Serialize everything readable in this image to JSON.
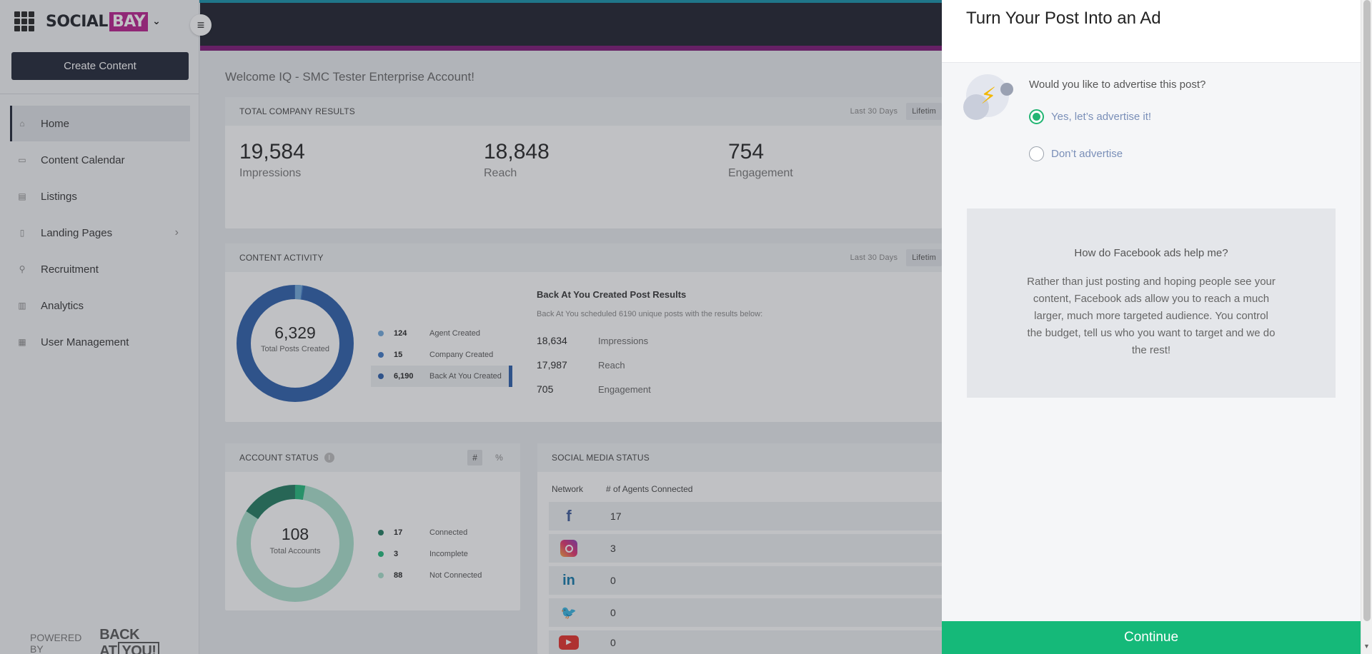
{
  "brand": {
    "name_a": "SOCIAL",
    "name_b": "BAY"
  },
  "sidebar": {
    "create_label": "Create Content",
    "items": [
      {
        "label": "Home",
        "icon": "home-icon"
      },
      {
        "label": "Content Calendar",
        "icon": "calendar-icon"
      },
      {
        "label": "Listings",
        "icon": "listings-icon"
      },
      {
        "label": "Landing Pages",
        "icon": "page-icon"
      },
      {
        "label": "Recruitment",
        "icon": "add-user-icon"
      },
      {
        "label": "Analytics",
        "icon": "bar-chart-icon"
      },
      {
        "label": "User Management",
        "icon": "users-icon"
      }
    ],
    "powered_by": "POWERED BY",
    "powered_logo_a": "BACK AT",
    "powered_logo_b": "YOU!"
  },
  "main": {
    "welcome": "Welcome IQ - SMC Tester Enterprise Account!",
    "company": {
      "title": "TOTAL COMPANY RESULTS",
      "range": "Last 30 Days",
      "range_btn": "Lifetim",
      "stats": [
        {
          "value": "19,584",
          "label": "Impressions"
        },
        {
          "value": "18,848",
          "label": "Reach"
        },
        {
          "value": "754",
          "label": "Engagement"
        }
      ]
    },
    "activity": {
      "title": "CONTENT ACTIVITY",
      "range": "Last 30 Days",
      "range_btn": "Lifetim",
      "total": "6,329",
      "total_label": "Total Posts Created",
      "legend": [
        {
          "value": "124",
          "label": "Agent Created",
          "color": "#6fa8dc"
        },
        {
          "value": "15",
          "label": "Company Created",
          "color": "#3d78c4"
        },
        {
          "value": "6,190",
          "label": "Back At You Created",
          "color": "#2a5daa"
        }
      ],
      "results_title": "Back At You Created Post Results",
      "results_sub": "Back At You scheduled 6190 unique posts with the results below:",
      "results": [
        {
          "value": "18,634",
          "label": "Impressions"
        },
        {
          "value": "17,987",
          "label": "Reach"
        },
        {
          "value": "705",
          "label": "Engagement"
        }
      ]
    },
    "account": {
      "title": "ACCOUNT STATUS",
      "toggle_hash": "#",
      "toggle_pct": "%",
      "total": "108",
      "total_label": "Total Accounts",
      "legend": [
        {
          "value": "17",
          "label": "Connected",
          "color": "#1e7a5e"
        },
        {
          "value": "3",
          "label": "Incomplete",
          "color": "#1fb87a"
        },
        {
          "value": "88",
          "label": "Not Connected",
          "color": "#a8e0cc"
        }
      ]
    },
    "social": {
      "title": "SOCIAL MEDIA STATUS",
      "col1": "Network",
      "col2": "# of Agents Connected",
      "rows": [
        {
          "network": "facebook-icon",
          "value": "17"
        },
        {
          "network": "instagram-icon",
          "value": "3"
        },
        {
          "network": "linkedin-icon",
          "value": "0"
        },
        {
          "network": "twitter-icon",
          "value": "0"
        },
        {
          "network": "youtube-icon",
          "value": "0"
        }
      ]
    }
  },
  "modal": {
    "title": "Turn Your Post Into an Ad",
    "question": "Would you like to advertise this post?",
    "option_yes": "Yes, let’s advertise it!",
    "option_no": "Don’t advertise",
    "help_q": "How do Facebook ads help me?",
    "help_text": "Rather than just posting and hoping people see your content, Facebook ads allow you to reach a much larger, much more targeted audience. You control the budget, tell us who you want to target and we do the rest!",
    "continue": "Continue"
  },
  "colors": {
    "accent_green": "#15b979",
    "navy": "#1d2233",
    "magenta": "#b91c8c"
  }
}
